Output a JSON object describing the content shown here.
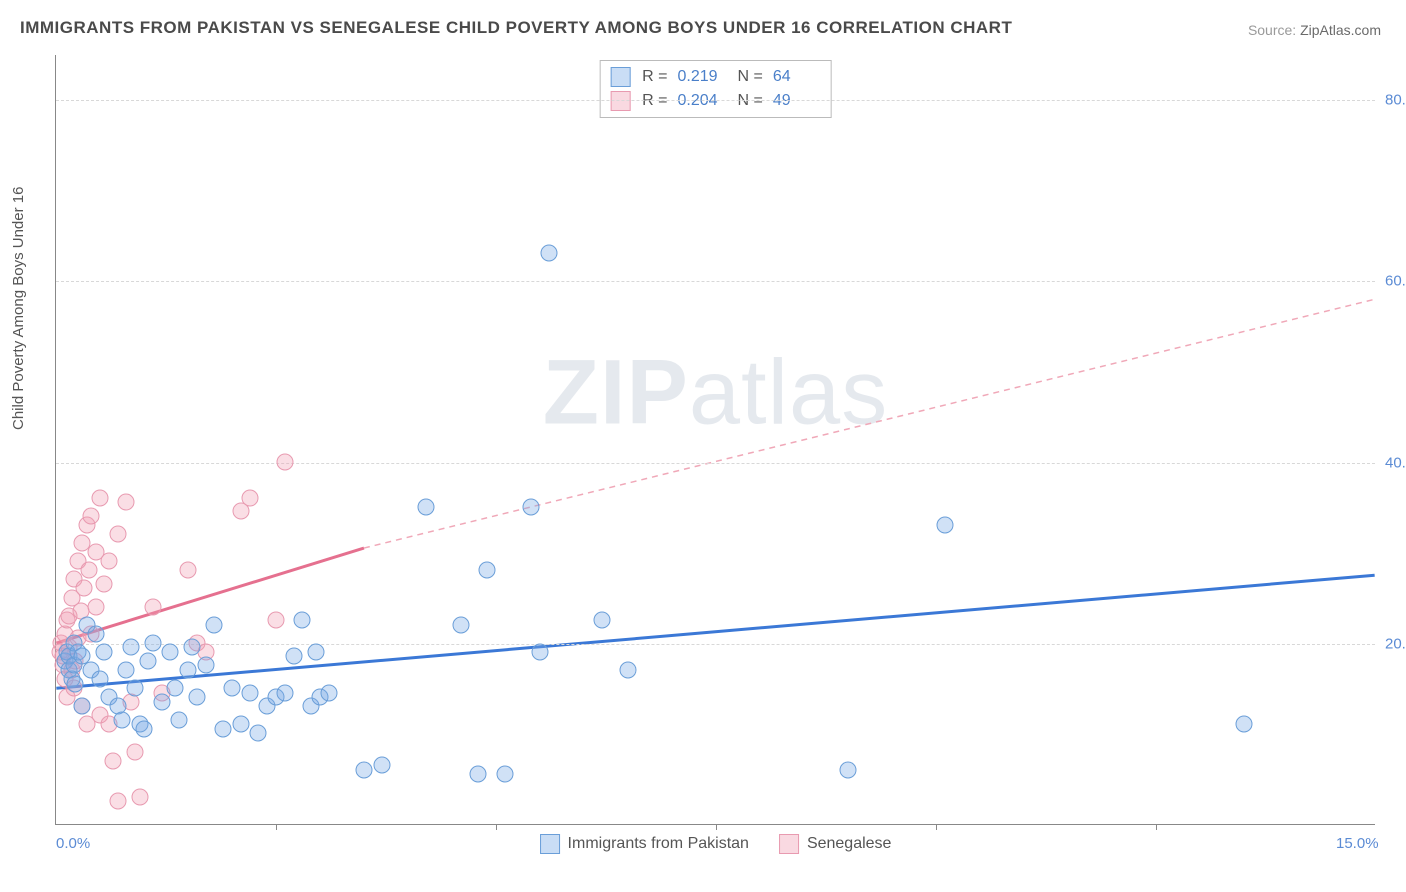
{
  "title": "IMMIGRANTS FROM PAKISTAN VS SENEGALESE CHILD POVERTY AMONG BOYS UNDER 16 CORRELATION CHART",
  "source_label": "Source:",
  "source_value": "ZipAtlas.com",
  "ylabel": "Child Poverty Among Boys Under 16",
  "watermark_bold": "ZIP",
  "watermark_light": "atlas",
  "xlim": [
    0.0,
    15.0
  ],
  "ylim": [
    0.0,
    85.0
  ],
  "x_ticks": [
    {
      "v": 0.0,
      "label": "0.0%"
    },
    {
      "v": 15.0,
      "label": "15.0%"
    }
  ],
  "x_minor_ticks": [
    2.5,
    5.0,
    7.5,
    10.0,
    12.5
  ],
  "y_ticks": [
    {
      "v": 20.0,
      "label": "20.0%"
    },
    {
      "v": 40.0,
      "label": "40.0%"
    },
    {
      "v": 60.0,
      "label": "60.0%"
    },
    {
      "v": 80.0,
      "label": "80.0%"
    }
  ],
  "legend_top": [
    {
      "swatch": "blue",
      "R": "0.219",
      "N": "64"
    },
    {
      "swatch": "pink",
      "R": "0.204",
      "N": "49"
    }
  ],
  "legend_bottom": [
    {
      "swatch": "blue",
      "label": "Immigrants from Pakistan"
    },
    {
      "swatch": "pink",
      "label": "Senegalese"
    }
  ],
  "series_blue": {
    "name": "Immigrants from Pakistan",
    "color_fill": "rgba(120,170,230,0.35)",
    "color_stroke": "#6a9ed8",
    "trend": {
      "x1": 0.0,
      "y1": 15.0,
      "x2": 15.0,
      "y2": 27.5,
      "stroke": "#3b78d6",
      "width": 3,
      "dash": "none"
    },
    "points": [
      [
        0.1,
        18.0
      ],
      [
        0.12,
        19.0
      ],
      [
        0.15,
        17.0
      ],
      [
        0.15,
        18.5
      ],
      [
        0.18,
        16.0
      ],
      [
        0.2,
        20.0
      ],
      [
        0.2,
        17.5
      ],
      [
        0.22,
        15.5
      ],
      [
        0.25,
        19.0
      ],
      [
        0.3,
        18.5
      ],
      [
        0.3,
        13.0
      ],
      [
        0.35,
        22.0
      ],
      [
        0.4,
        17.0
      ],
      [
        0.45,
        21.0
      ],
      [
        0.5,
        16.0
      ],
      [
        0.55,
        19.0
      ],
      [
        0.6,
        14.0
      ],
      [
        0.7,
        13.0
      ],
      [
        0.75,
        11.5
      ],
      [
        0.8,
        17.0
      ],
      [
        0.85,
        19.5
      ],
      [
        0.9,
        15.0
      ],
      [
        0.95,
        11.0
      ],
      [
        1.0,
        10.5
      ],
      [
        1.05,
        18.0
      ],
      [
        1.1,
        20.0
      ],
      [
        1.2,
        13.5
      ],
      [
        1.3,
        19.0
      ],
      [
        1.35,
        15.0
      ],
      [
        1.4,
        11.5
      ],
      [
        1.5,
        17.0
      ],
      [
        1.55,
        19.5
      ],
      [
        1.6,
        14.0
      ],
      [
        1.7,
        17.5
      ],
      [
        1.8,
        22.0
      ],
      [
        1.9,
        10.5
      ],
      [
        2.0,
        15.0
      ],
      [
        2.1,
        11.0
      ],
      [
        2.2,
        14.5
      ],
      [
        2.3,
        10.0
      ],
      [
        2.4,
        13.0
      ],
      [
        2.5,
        14.0
      ],
      [
        2.6,
        14.5
      ],
      [
        2.7,
        18.5
      ],
      [
        2.8,
        22.5
      ],
      [
        2.9,
        13.0
      ],
      [
        2.95,
        19.0
      ],
      [
        3.0,
        14.0
      ],
      [
        3.1,
        14.5
      ],
      [
        3.5,
        6.0
      ],
      [
        3.7,
        6.5
      ],
      [
        4.2,
        35.0
      ],
      [
        4.6,
        22.0
      ],
      [
        4.8,
        5.5
      ],
      [
        4.9,
        28.0
      ],
      [
        5.1,
        5.5
      ],
      [
        5.4,
        35.0
      ],
      [
        5.5,
        19.0
      ],
      [
        5.6,
        63.0
      ],
      [
        6.2,
        22.5
      ],
      [
        6.5,
        17.0
      ],
      [
        9.0,
        6.0
      ],
      [
        10.1,
        33.0
      ],
      [
        13.5,
        11.0
      ]
    ]
  },
  "series_pink": {
    "name": "Senegalese",
    "color_fill": "rgba(240,160,180,0.35)",
    "color_stroke": "#e89ab0",
    "trend_solid": {
      "x1": 0.0,
      "y1": 20.0,
      "x2": 3.5,
      "y2": 30.5,
      "stroke": "#e5708f",
      "width": 3
    },
    "trend_dash": {
      "x1": 3.5,
      "y1": 30.5,
      "x2": 15.0,
      "y2": 58.0,
      "stroke": "#f0a8b8",
      "width": 1.5,
      "dash": "6,5"
    },
    "points": [
      [
        0.05,
        19.0
      ],
      [
        0.06,
        20.0
      ],
      [
        0.08,
        17.5
      ],
      [
        0.08,
        18.5
      ],
      [
        0.1,
        21.0
      ],
      [
        0.1,
        16.0
      ],
      [
        0.12,
        22.5
      ],
      [
        0.12,
        14.0
      ],
      [
        0.15,
        19.5
      ],
      [
        0.15,
        23.0
      ],
      [
        0.18,
        25.0
      ],
      [
        0.18,
        17.0
      ],
      [
        0.2,
        27.0
      ],
      [
        0.2,
        15.0
      ],
      [
        0.22,
        18.0
      ],
      [
        0.25,
        20.5
      ],
      [
        0.25,
        29.0
      ],
      [
        0.28,
        23.5
      ],
      [
        0.3,
        31.0
      ],
      [
        0.3,
        13.0
      ],
      [
        0.32,
        26.0
      ],
      [
        0.35,
        33.0
      ],
      [
        0.35,
        11.0
      ],
      [
        0.38,
        28.0
      ],
      [
        0.4,
        34.0
      ],
      [
        0.4,
        21.0
      ],
      [
        0.45,
        24.0
      ],
      [
        0.45,
        30.0
      ],
      [
        0.5,
        36.0
      ],
      [
        0.5,
        12.0
      ],
      [
        0.55,
        26.5
      ],
      [
        0.6,
        11.0
      ],
      [
        0.6,
        29.0
      ],
      [
        0.65,
        7.0
      ],
      [
        0.7,
        32.0
      ],
      [
        0.7,
        2.5
      ],
      [
        0.8,
        35.5
      ],
      [
        0.85,
        13.5
      ],
      [
        0.9,
        8.0
      ],
      [
        0.95,
        3.0
      ],
      [
        1.1,
        24.0
      ],
      [
        1.2,
        14.5
      ],
      [
        1.5,
        28.0
      ],
      [
        1.6,
        20.0
      ],
      [
        1.7,
        19.0
      ],
      [
        2.1,
        34.5
      ],
      [
        2.2,
        36.0
      ],
      [
        2.5,
        22.5
      ],
      [
        2.6,
        40.0
      ]
    ]
  }
}
